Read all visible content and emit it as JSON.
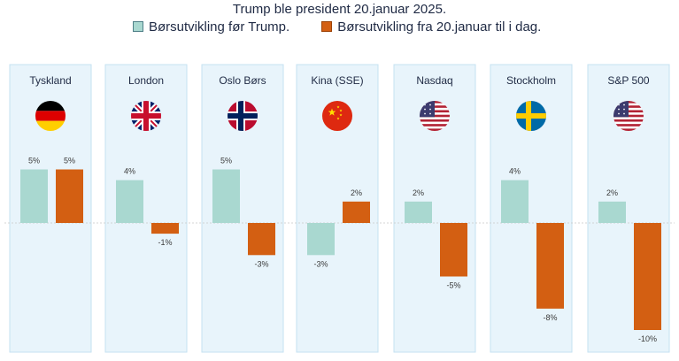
{
  "chart_data": {
    "type": "bar",
    "title": "Trump ble president 20.januar 2025.",
    "legend_position": "top",
    "categories": [
      "Tyskland",
      "London",
      "Oslo Børs",
      "Kina (SSE)",
      "Nasdaq",
      "Stockholm",
      "S&P 500"
    ],
    "series": [
      {
        "name": "Børsutvikling før Trump.",
        "values": [
          5,
          4,
          5,
          -3,
          2,
          4,
          2
        ],
        "labels": [
          "5%",
          "4%",
          "5%",
          "-3%",
          "2%",
          "4%",
          "2%"
        ]
      },
      {
        "name": "Børsutvikling fra 20.januar til i dag.",
        "values": [
          5,
          -1,
          -3,
          2,
          -5,
          -8,
          -10
        ],
        "labels": [
          "5%",
          "-1%",
          "-3%",
          "2%",
          "-5%",
          "-8%",
          "-10%"
        ]
      }
    ],
    "flags": [
      "germany-flag-icon",
      "uk-flag-icon",
      "norway-flag-icon",
      "china-flag-icon",
      "usa-flag-icon",
      "sweden-flag-icon",
      "usa-flag-icon"
    ],
    "grid": false,
    "colors": {
      "before": "#a9d8d0",
      "after": "#d35f12",
      "panel": "#e8f4fb",
      "panel_border": "#c5e2f2"
    }
  }
}
